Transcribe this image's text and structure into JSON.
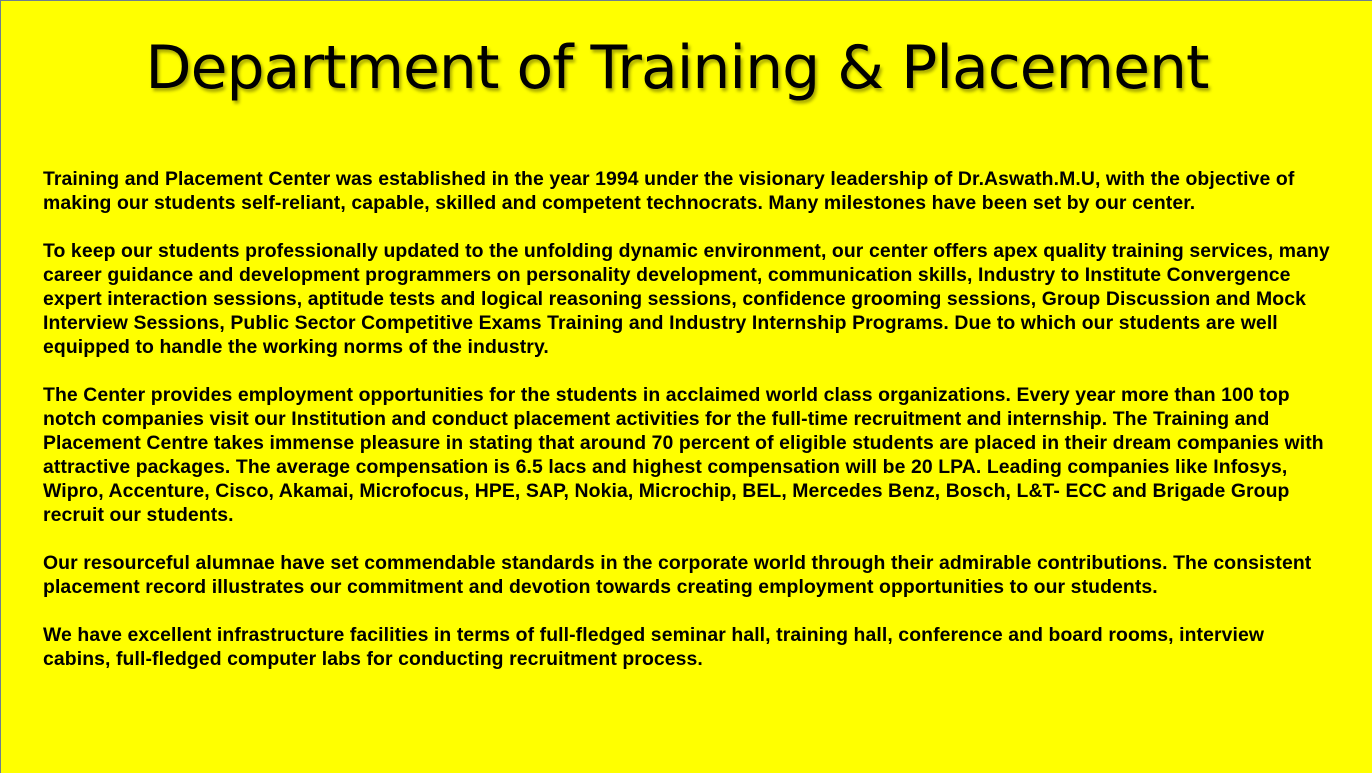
{
  "slide": {
    "title": "Department of Training & Placement",
    "paragraphs": [
      "Training and Placement Center was established in the year 1994 under the visionary leadership of Dr.Aswath.M.U, with the objective of making our students self-reliant, capable, skilled and competent technocrats. Many milestones have been set by our center.",
      "To keep our students professionally updated to the unfolding dynamic environment, our center offers apex quality training services, many career guidance and development programmers on personality development, communication skills, Industry to Institute Convergence expert interaction sessions, aptitude tests and logical reasoning sessions, confidence grooming sessions, Group Discussion and Mock Interview Sessions, Public Sector Competitive Exams Training and Industry Internship Programs. Due to which our students are well equipped to handle the working norms of the industry.",
      "The Center provides employment opportunities for the students in acclaimed world class organizations. Every year more than 100 top notch companies visit our Institution and conduct placement activities for the full-time recruitment and internship. The Training and Placement Centre takes immense pleasure in stating that around 70 percent of eligible students are placed in their dream companies with attractive packages. The average compensation is 6.5 lacs and highest compensation will be 20 LPA. Leading companies like Infosys, Wipro, Accenture, Cisco, Akamai, Microfocus, HPE, SAP, Nokia, Microchip, BEL, Mercedes Benz, Bosch, L&T- ECC and Brigade Group recruit our students.",
      "Our resourceful alumnae have set commendable standards in the corporate world through their admirable contributions. The consistent placement record illustrates our commitment and devotion towards creating employment opportunities to our students.",
      "We have excellent infrastructure facilities in terms of full-fledged seminar hall, training hall, conference and board rooms, interview cabins, full-fledged computer labs for conducting recruitment process."
    ]
  },
  "colors": {
    "background": "#ffff00",
    "text": "#000000"
  }
}
